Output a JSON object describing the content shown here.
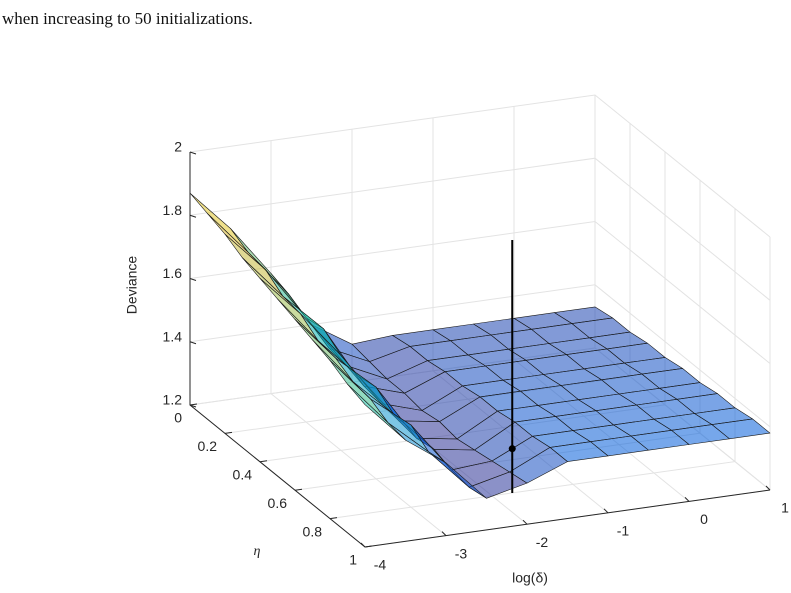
{
  "caption": "when increasing to 50 initializations.",
  "chart_data": {
    "type": "surface",
    "xlabel": "log(δ)",
    "ylabel": "η",
    "zlabel": "Deviance",
    "x": [
      -4,
      -3.5,
      -3,
      -2.5,
      -2,
      -1.5,
      -1,
      -0.5,
      0,
      0.5,
      1
    ],
    "y": [
      0,
      0.1,
      0.2,
      0.3,
      0.4,
      0.5,
      0.6,
      0.7,
      0.8,
      0.9,
      1
    ],
    "z": [
      [
        1.87,
        1.74,
        1.58,
        1.4,
        1.32,
        1.33,
        1.33,
        1.33,
        1.33,
        1.33,
        1.33
      ],
      [
        1.85,
        1.71,
        1.56,
        1.37,
        1.31,
        1.34,
        1.34,
        1.34,
        1.34,
        1.34,
        1.34
      ],
      [
        1.83,
        1.7,
        1.53,
        1.36,
        1.3,
        1.34,
        1.34,
        1.34,
        1.34,
        1.34,
        1.34
      ],
      [
        1.8,
        1.66,
        1.54,
        1.34,
        1.3,
        1.35,
        1.35,
        1.35,
        1.35,
        1.35,
        1.35
      ],
      [
        1.78,
        1.65,
        1.5,
        1.33,
        1.29,
        1.35,
        1.35,
        1.35,
        1.35,
        1.35,
        1.35
      ],
      [
        1.76,
        1.61,
        1.48,
        1.32,
        1.3,
        1.36,
        1.36,
        1.36,
        1.36,
        1.36,
        1.36
      ],
      [
        1.74,
        1.6,
        1.49,
        1.31,
        1.29,
        1.36,
        1.36,
        1.36,
        1.36,
        1.36,
        1.36
      ],
      [
        1.72,
        1.57,
        1.45,
        1.32,
        1.3,
        1.37,
        1.37,
        1.37,
        1.37,
        1.37,
        1.37
      ],
      [
        1.7,
        1.56,
        1.46,
        1.3,
        1.31,
        1.37,
        1.37,
        1.37,
        1.37,
        1.37,
        1.37
      ],
      [
        1.67,
        1.53,
        1.42,
        1.29,
        1.32,
        1.38,
        1.38,
        1.38,
        1.38,
        1.38,
        1.38
      ],
      [
        1.65,
        1.52,
        1.43,
        1.3,
        1.33,
        1.38,
        1.38,
        1.38,
        1.38,
        1.38,
        1.38
      ]
    ],
    "marker": {
      "x": -1.75,
      "y": 0.8,
      "z": 1.34,
      "stem_top": 2.0,
      "color": "#000000"
    },
    "xlim": [
      -4,
      1
    ],
    "xticks": [
      -4,
      -3,
      -2,
      -1,
      0,
      1
    ],
    "ylim": [
      0,
      1
    ],
    "yticks": [
      0,
      0.2,
      0.4,
      0.6,
      0.8,
      1
    ],
    "zlim": [
      1.2,
      2
    ],
    "zticks": [
      1.2,
      1.4,
      1.6,
      1.8,
      2
    ],
    "grid": true,
    "colormap": "parula",
    "face_alpha": 0.55
  }
}
